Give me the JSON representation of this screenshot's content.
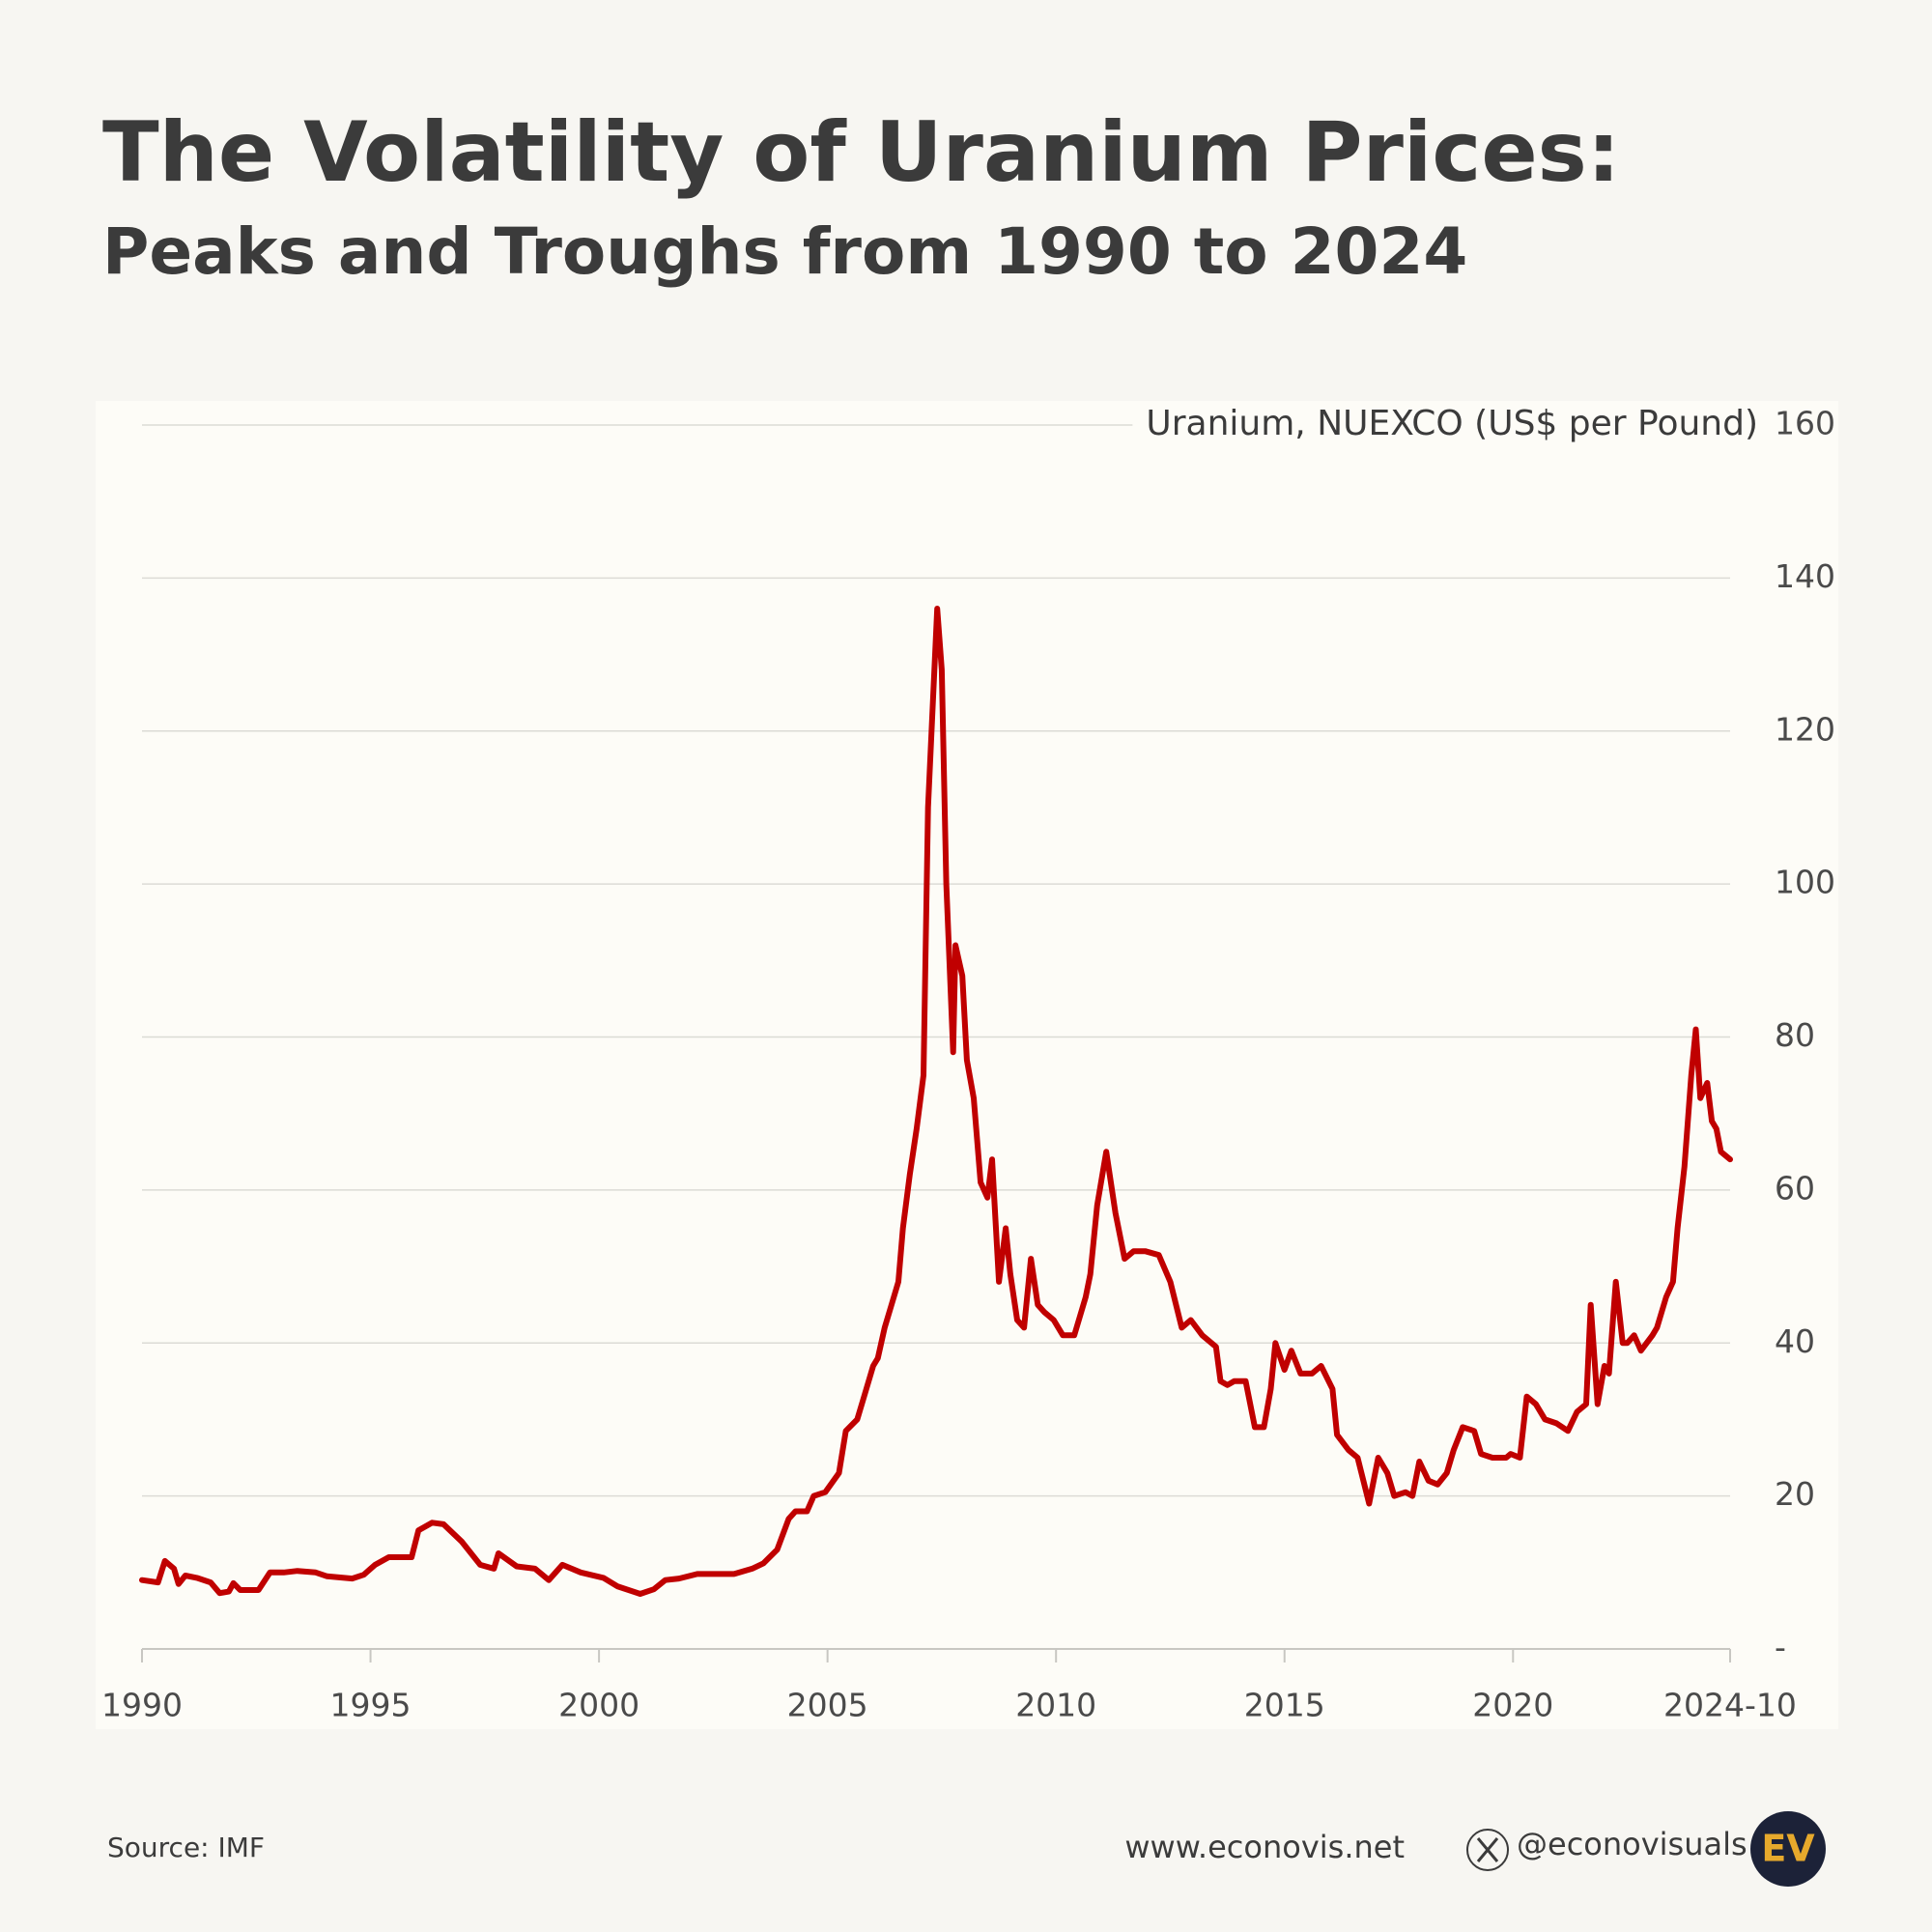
{
  "chart_data": {
    "type": "line",
    "title": "The Volatility of Uranium Prices:",
    "subtitle": "Peaks and Troughs from 1990 to 2024",
    "y_label": "Uranium, NUEXCO (US$ per Pound)",
    "source": "Source: IMF",
    "website": "www.econovis.net",
    "handle": "@econovisuals",
    "logo": "EV",
    "x": [
      1990.0,
      1990.35,
      1990.5,
      1990.7,
      1990.8,
      1990.95,
      1991.2,
      1991.5,
      1991.7,
      1991.9,
      1992.0,
      1992.15,
      1992.55,
      1992.8,
      1993.1,
      1993.4,
      1993.8,
      1994.05,
      1994.6,
      1994.85,
      1995.1,
      1995.4,
      1995.9,
      1996.05,
      1996.35,
      1996.6,
      1997.0,
      1997.4,
      1997.7,
      1997.8,
      1998.2,
      1998.6,
      1998.9,
      1999.2,
      1999.6,
      2000.1,
      2000.4,
      2000.9,
      2001.2,
      2001.45,
      2001.75,
      2002.15,
      2002.95,
      2003.35,
      2003.6,
      2003.9,
      2004.15,
      2004.3,
      2004.55,
      2004.7,
      2004.95,
      2005.25,
      2005.4,
      2005.65,
      2005.8,
      2006.0,
      2006.1,
      2006.25,
      2006.4,
      2006.55,
      2006.65,
      2006.8,
      2006.95,
      2007.1,
      2007.2,
      2007.4,
      2007.5,
      2007.6,
      2007.75,
      2007.8,
      2007.95,
      2008.05,
      2008.2,
      2008.35,
      2008.5,
      2008.6,
      2008.75,
      2008.9,
      2009.0,
      2009.15,
      2009.3,
      2009.45,
      2009.6,
      2009.75,
      2009.95,
      2010.15,
      2010.4,
      2010.65,
      2010.75,
      2010.9,
      2011.1,
      2011.3,
      2011.5,
      2011.7,
      2011.95,
      2012.25,
      2012.5,
      2012.75,
      2012.95,
      2013.2,
      2013.5,
      2013.6,
      2013.75,
      2013.9,
      2014.15,
      2014.35,
      2014.55,
      2014.7,
      2014.8,
      2015.0,
      2015.15,
      2015.35,
      2015.6,
      2015.8,
      2016.05,
      2016.15,
      2016.4,
      2016.6,
      2016.85,
      2017.05,
      2017.25,
      2017.4,
      2017.65,
      2017.8,
      2017.95,
      2018.15,
      2018.35,
      2018.55,
      2018.7,
      2018.9,
      2019.15,
      2019.3,
      2019.55,
      2019.85,
      2019.95,
      2020.15,
      2020.3,
      2020.5,
      2020.7,
      2020.95,
      2021.2,
      2021.4,
      2021.6,
      2021.7,
      2021.85,
      2022.0,
      2022.1,
      2022.25,
      2022.4,
      2022.5,
      2022.65,
      2022.8,
      2023.05,
      2023.15,
      2023.35,
      2023.5,
      2023.6,
      2023.75,
      2023.9,
      2024.0,
      2024.1,
      2024.25,
      2024.35,
      2024.45,
      2024.55,
      2024.75
    ],
    "series": [
      {
        "name": "Uranium, NUEXCO (US$ per Pound)",
        "color": "#c00000",
        "values": [
          9,
          8.7,
          11.5,
          10.5,
          8.5,
          9.6,
          9.3,
          8.7,
          7.3,
          7.5,
          8.6,
          7.7,
          7.7,
          10,
          10,
          10.2,
          10,
          9.5,
          9.2,
          9.7,
          11,
          12,
          12,
          15.5,
          16.5,
          16.3,
          14,
          11,
          10.5,
          12.5,
          10.8,
          10.5,
          9,
          11,
          10,
          9.3,
          8.2,
          7.2,
          7.8,
          9,
          9.2,
          9.8,
          9.8,
          10.5,
          11.2,
          13,
          17,
          18,
          18,
          20,
          20.5,
          23,
          28.5,
          30,
          33,
          37,
          38,
          42,
          45,
          48,
          55,
          62,
          68,
          75,
          110,
          136,
          128,
          100,
          78,
          92,
          88,
          77,
          72,
          61,
          59,
          64,
          48,
          55,
          49,
          43,
          42,
          51,
          45,
          44,
          43,
          41,
          41,
          46,
          49,
          58,
          65,
          57,
          51,
          52,
          52,
          51.5,
          48,
          42,
          43,
          41,
          39.5,
          35,
          34.5,
          35,
          35,
          29,
          29,
          34,
          40,
          36.5,
          39,
          36,
          36,
          37,
          34,
          28,
          26,
          25,
          19,
          25,
          23,
          20,
          20.5,
          20,
          24.5,
          22,
          21.5,
          23,
          26,
          29,
          28.5,
          25.5,
          25,
          25,
          25.5,
          25,
          33,
          32,
          30,
          29.5,
          28.5,
          31,
          32,
          45,
          32,
          37,
          36,
          48,
          40,
          40,
          41,
          39,
          41,
          42,
          46,
          48,
          55,
          63,
          75,
          81,
          72,
          74,
          69,
          68,
          65,
          64
        ]
      }
    ],
    "xlim": [
      1990,
      2024.75
    ],
    "xticks": [
      1990,
      1995,
      2000,
      2005,
      2010,
      2015,
      2020,
      {
        "value": 2024.75,
        "label": "2024-10"
      }
    ],
    "ylim": [
      0,
      160
    ],
    "yticks": [
      {
        "value": 0,
        "label": "-"
      },
      20,
      40,
      60,
      80,
      100,
      120,
      140,
      160
    ],
    "grid": true
  }
}
